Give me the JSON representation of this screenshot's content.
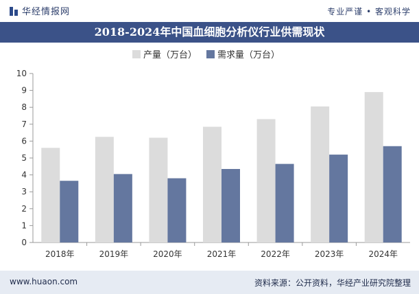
{
  "header": {
    "brand": "华经情报网",
    "slogan": "专业严谨 • 客观科学"
  },
  "chart_data": {
    "type": "bar",
    "title": "2018-2024年中国血细胞分析仪行业供需现状",
    "categories": [
      "2018年",
      "2019年",
      "2020年",
      "2021年",
      "2022年",
      "2023年",
      "2024年"
    ],
    "series": [
      {
        "name": "产量（万台）",
        "color": "#dcdcdc",
        "values": [
          5.6,
          6.25,
          6.2,
          6.85,
          7.3,
          8.05,
          8.9
        ]
      },
      {
        "name": "需求量（万台）",
        "color": "#64779f",
        "values": [
          3.65,
          4.05,
          3.8,
          4.35,
          4.65,
          5.2,
          5.7
        ]
      }
    ],
    "yticks": [
      "0",
      "1",
      "2",
      "3",
      "4",
      "5",
      "6",
      "7",
      "8",
      "9",
      "10"
    ],
    "ylim": [
      0,
      10
    ],
    "grid": false,
    "legend": "top-center"
  },
  "footer": {
    "url": "www.huaon.com",
    "source": "资料来源：公开资料，华经产业研究院整理"
  }
}
